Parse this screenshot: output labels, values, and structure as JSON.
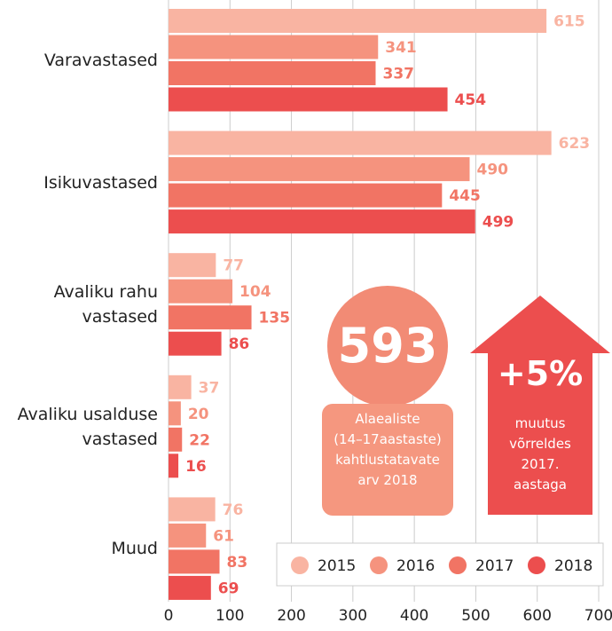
{
  "chart_data": {
    "type": "hbar",
    "categories": [
      "Varavastased",
      "Isikuvastased",
      "Avaliku rahu\nvastased",
      "Avaliku usalduse\nvastased",
      "Muud"
    ],
    "series": [
      {
        "name": "2015",
        "color": "#f9b4a2",
        "values": [
          615,
          623,
          77,
          37,
          76
        ]
      },
      {
        "name": "2016",
        "color": "#f5937e",
        "values": [
          341,
          490,
          104,
          20,
          61
        ]
      },
      {
        "name": "2017",
        "color": "#f17464",
        "values": [
          337,
          445,
          135,
          22,
          83
        ]
      },
      {
        "name": "2018",
        "color": "#ec4e4e",
        "values": [
          454,
          499,
          86,
          16,
          69
        ]
      }
    ],
    "xlim": [
      0,
      700
    ],
    "xticks": [
      0,
      100,
      200,
      300,
      400,
      500,
      600,
      700
    ],
    "grid": true,
    "annotations": {
      "big_number": "593",
      "big_number_caption": "Alaealiste\n(14–17aastaste)\nkahtlustatavate\narv 2018",
      "change": "+5%",
      "change_caption": "muutus\nvõrreldes\n2017.\naastaga"
    }
  }
}
